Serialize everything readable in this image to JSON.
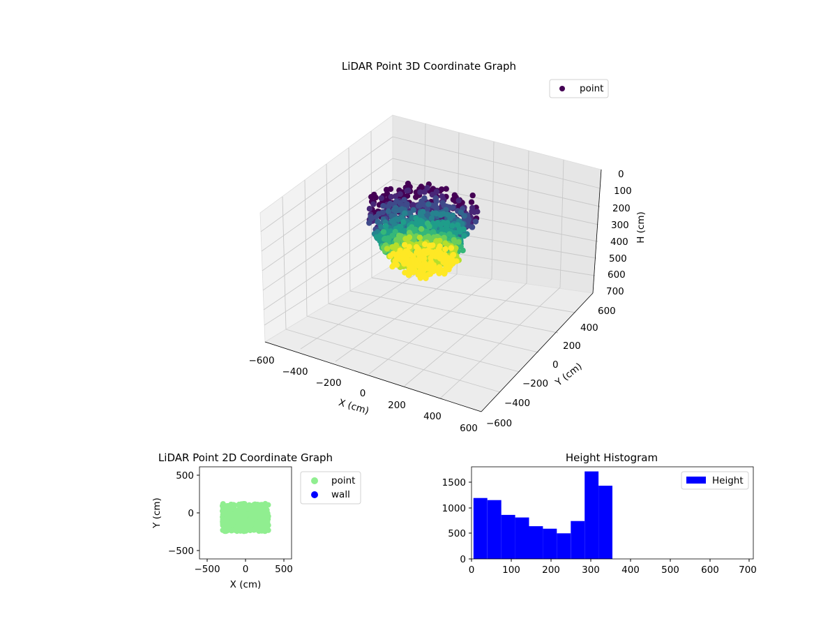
{
  "chart_data": [
    {
      "type": "scatter",
      "title": "LiDAR Point 3D Coordinate Graph",
      "xlabel": "X (cm)",
      "ylabel": "Y (cm)",
      "zlabel": "H (cm)",
      "xlim": [
        -600,
        600
      ],
      "ylim": [
        -600,
        600
      ],
      "zlim": [
        700,
        0
      ],
      "x_ticks": [
        "−600",
        "−400",
        "−200",
        "0",
        "200",
        "400",
        "600"
      ],
      "y_ticks": [
        "−600",
        "−400",
        "−200",
        "0",
        "200",
        "400",
        "600"
      ],
      "z_ticks": [
        "0",
        "100",
        "200",
        "300",
        "400",
        "500",
        "600",
        "700"
      ],
      "legend": [
        "point"
      ],
      "legend_location": "upper right",
      "colormap": "viridis",
      "grid": true,
      "series": [
        {
          "name": "point",
          "color": "#440154"
        }
      ]
    },
    {
      "type": "scatter",
      "title": "LiDAR Point 2D Coordinate Graph",
      "xlabel": "X (cm)",
      "ylabel": "Y (cm)",
      "xlim": [
        -600,
        600
      ],
      "ylim": [
        -600,
        600
      ],
      "x_ticks": [
        "−500",
        "0",
        "500"
      ],
      "y_ticks": [
        "−500",
        "0",
        "500"
      ],
      "legend_location": "outside right",
      "series": [
        {
          "name": "point",
          "color": "#90ee90"
        },
        {
          "name": "wall",
          "color": "#0000ff"
        }
      ]
    },
    {
      "type": "bar",
      "title": "Height Histogram",
      "xlabel": "",
      "ylabel": "",
      "xlim": [
        0,
        710
      ],
      "ylim": [
        0,
        1800
      ],
      "x_ticks": [
        "0",
        "100",
        "200",
        "300",
        "400",
        "500",
        "600",
        "700"
      ],
      "y_ticks": [
        "0",
        "500",
        "1000",
        "1500"
      ],
      "legend_location": "upper right",
      "bin_edges": [
        5,
        40,
        75,
        110,
        145,
        180,
        215,
        250,
        285,
        320,
        355
      ],
      "values": [
        1190,
        1150,
        860,
        810,
        640,
        590,
        500,
        740,
        1710,
        1430
      ],
      "series": [
        {
          "name": "Height",
          "color": "#0000ff"
        }
      ]
    }
  ]
}
